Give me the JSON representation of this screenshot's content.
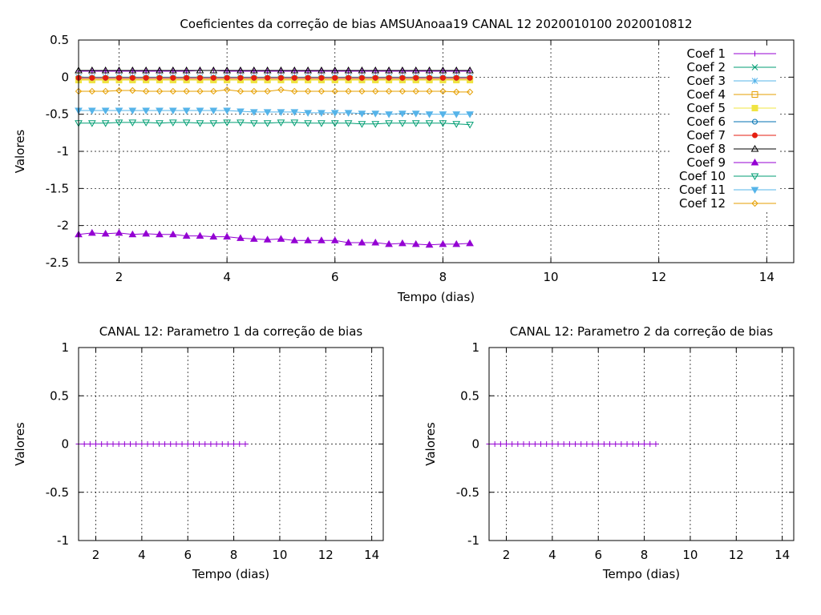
{
  "chart_data": [
    {
      "type": "line",
      "title": "Coeficientes da correção de bias AMSUAnoaa19 CANAL 12 2020010100 2020010812",
      "xlabel": "Tempo (dias)",
      "ylabel": "Valores",
      "xlim": [
        1.25,
        14.5
      ],
      "ylim": [
        -2.5,
        0.5
      ],
      "xticks": [
        "2",
        "4",
        "6",
        "8",
        "10",
        "12",
        "14"
      ],
      "yticks": [
        "0.5",
        "0",
        "-0.5",
        "-1",
        "-1.5",
        "-2",
        "-2.5"
      ],
      "grid": true,
      "legend_position": "top-right",
      "x": [
        1.25,
        1.5,
        1.75,
        2.0,
        2.25,
        2.5,
        2.75,
        3.0,
        3.25,
        3.5,
        3.75,
        4.0,
        4.25,
        4.5,
        4.75,
        5.0,
        5.25,
        5.5,
        5.75,
        6.0,
        6.25,
        6.5,
        6.75,
        7.0,
        7.25,
        7.5,
        7.75,
        8.0,
        8.25,
        8.5
      ],
      "series": [
        {
          "name": "Coef 1",
          "color": "#9400d3",
          "marker": "plus",
          "values": [
            0.08,
            0.08,
            0.08,
            0.08,
            0.08,
            0.08,
            0.08,
            0.08,
            0.08,
            0.09,
            0.09,
            0.08,
            0.08,
            0.08,
            0.08,
            0.08,
            0.08,
            0.08,
            0.08,
            0.08,
            0.08,
            0.08,
            0.08,
            0.08,
            0.08,
            0.08,
            0.08,
            0.08,
            0.08,
            0.08
          ]
        },
        {
          "name": "Coef 2",
          "color": "#009e73",
          "marker": "x",
          "values": [
            0.0,
            0.0,
            0.0,
            0.0,
            0.0,
            0.0,
            0.0,
            0.0,
            0.0,
            0.0,
            0.0,
            0.0,
            0.0,
            0.0,
            0.0,
            0.0,
            0.0,
            0.0,
            0.0,
            0.0,
            0.0,
            0.0,
            0.0,
            0.0,
            0.0,
            0.0,
            0.0,
            0.0,
            0.0,
            0.0
          ]
        },
        {
          "name": "Coef 3",
          "color": "#56b4e9",
          "marker": "star",
          "values": [
            0.0,
            0.0,
            0.0,
            0.0,
            0.0,
            0.0,
            0.0,
            0.0,
            0.0,
            0.0,
            0.0,
            0.0,
            0.0,
            0.0,
            0.0,
            0.0,
            0.0,
            0.0,
            0.0,
            0.0,
            0.0,
            0.0,
            0.0,
            0.0,
            0.0,
            0.0,
            0.0,
            0.0,
            0.0,
            0.0
          ]
        },
        {
          "name": "Coef 4",
          "color": "#e69f00",
          "marker": "square-open",
          "values": [
            -0.03,
            -0.03,
            -0.03,
            -0.03,
            -0.03,
            -0.03,
            -0.03,
            -0.03,
            -0.03,
            -0.03,
            -0.03,
            -0.03,
            -0.03,
            -0.03,
            -0.03,
            -0.03,
            -0.03,
            -0.03,
            -0.03,
            -0.03,
            -0.03,
            -0.03,
            -0.03,
            -0.03,
            -0.03,
            -0.03,
            -0.03,
            -0.03,
            -0.03,
            -0.03
          ]
        },
        {
          "name": "Coef 5",
          "color": "#f0e442",
          "marker": "square-filled",
          "values": [
            -0.04,
            -0.04,
            -0.04,
            -0.04,
            -0.04,
            -0.04,
            -0.04,
            -0.04,
            -0.04,
            -0.04,
            -0.04,
            -0.04,
            -0.04,
            -0.04,
            -0.04,
            -0.04,
            -0.04,
            -0.04,
            -0.04,
            -0.04,
            -0.04,
            -0.04,
            -0.04,
            -0.04,
            -0.04,
            -0.04,
            -0.04,
            -0.04,
            -0.04,
            -0.04
          ]
        },
        {
          "name": "Coef 6",
          "color": "#0072b2",
          "marker": "circle-open",
          "values": [
            -0.01,
            -0.01,
            -0.01,
            -0.01,
            -0.01,
            -0.01,
            -0.01,
            -0.01,
            -0.01,
            -0.01,
            -0.01,
            -0.01,
            -0.01,
            -0.01,
            -0.01,
            -0.01,
            -0.01,
            -0.01,
            -0.01,
            -0.01,
            -0.01,
            -0.01,
            -0.01,
            -0.01,
            -0.01,
            -0.01,
            -0.01,
            -0.01,
            -0.01,
            -0.01
          ]
        },
        {
          "name": "Coef 7",
          "color": "#e51e10",
          "marker": "circle-filled",
          "values": [
            -0.01,
            -0.01,
            -0.01,
            -0.01,
            -0.01,
            -0.01,
            -0.01,
            -0.01,
            -0.01,
            -0.01,
            -0.01,
            -0.01,
            -0.01,
            -0.01,
            -0.01,
            -0.01,
            -0.01,
            -0.01,
            -0.01,
            -0.01,
            -0.01,
            -0.01,
            -0.01,
            -0.01,
            -0.01,
            -0.01,
            -0.01,
            -0.01,
            -0.01,
            -0.01
          ]
        },
        {
          "name": "Coef 8",
          "color": "#000000",
          "marker": "triangle-open",
          "values": [
            0.09,
            0.09,
            0.09,
            0.09,
            0.09,
            0.09,
            0.09,
            0.09,
            0.09,
            0.09,
            0.09,
            0.09,
            0.09,
            0.09,
            0.09,
            0.09,
            0.09,
            0.09,
            0.09,
            0.09,
            0.09,
            0.09,
            0.09,
            0.09,
            0.09,
            0.09,
            0.09,
            0.09,
            0.09,
            0.09
          ]
        },
        {
          "name": "Coef 9",
          "color": "#9400d3",
          "marker": "triangle-filled",
          "values": [
            -2.12,
            -2.1,
            -2.11,
            -2.1,
            -2.12,
            -2.11,
            -2.12,
            -2.12,
            -2.14,
            -2.14,
            -2.15,
            -2.15,
            -2.17,
            -2.18,
            -2.19,
            -2.18,
            -2.2,
            -2.2,
            -2.2,
            -2.2,
            -2.23,
            -2.23,
            -2.23,
            -2.25,
            -2.24,
            -2.25,
            -2.26,
            -2.25,
            -2.25,
            -2.24
          ]
        },
        {
          "name": "Coef 10",
          "color": "#009e73",
          "marker": "triangle-down-open",
          "values": [
            -0.62,
            -0.62,
            -0.62,
            -0.61,
            -0.61,
            -0.61,
            -0.62,
            -0.61,
            -0.61,
            -0.62,
            -0.62,
            -0.61,
            -0.61,
            -0.62,
            -0.62,
            -0.61,
            -0.61,
            -0.62,
            -0.62,
            -0.62,
            -0.62,
            -0.63,
            -0.63,
            -0.62,
            -0.62,
            -0.62,
            -0.62,
            -0.62,
            -0.63,
            -0.64
          ]
        },
        {
          "name": "Coef 11",
          "color": "#56b4e9",
          "marker": "triangle-down-filled",
          "values": [
            -0.45,
            -0.45,
            -0.45,
            -0.45,
            -0.45,
            -0.45,
            -0.45,
            -0.45,
            -0.45,
            -0.45,
            -0.45,
            -0.45,
            -0.46,
            -0.47,
            -0.47,
            -0.47,
            -0.47,
            -0.48,
            -0.48,
            -0.48,
            -0.48,
            -0.49,
            -0.49,
            -0.5,
            -0.49,
            -0.49,
            -0.5,
            -0.5,
            -0.5,
            -0.5
          ]
        },
        {
          "name": "Coef 12",
          "color": "#e69f00",
          "marker": "diamond-open",
          "values": [
            -0.19,
            -0.19,
            -0.19,
            -0.18,
            -0.18,
            -0.19,
            -0.19,
            -0.19,
            -0.19,
            -0.19,
            -0.19,
            -0.17,
            -0.19,
            -0.19,
            -0.19,
            -0.17,
            -0.19,
            -0.19,
            -0.19,
            -0.19,
            -0.19,
            -0.19,
            -0.19,
            -0.19,
            -0.19,
            -0.19,
            -0.19,
            -0.19,
            -0.2,
            -0.2
          ]
        }
      ]
    },
    {
      "type": "line",
      "title": "CANAL 12: Parametro 1 da correção de bias",
      "xlabel": "Tempo (dias)",
      "ylabel": "Valores",
      "xlim": [
        1.25,
        14.5
      ],
      "ylim": [
        -1,
        1
      ],
      "xticks": [
        "2",
        "4",
        "6",
        "8",
        "10",
        "12",
        "14"
      ],
      "yticks": [
        "1",
        "0.5",
        "0",
        "-0.5",
        "-1"
      ],
      "grid": true,
      "x": [
        1.25,
        1.5,
        1.75,
        2.0,
        2.25,
        2.5,
        2.75,
        3.0,
        3.25,
        3.5,
        3.75,
        4.0,
        4.25,
        4.5,
        4.75,
        5.0,
        5.25,
        5.5,
        5.75,
        6.0,
        6.25,
        6.5,
        6.75,
        7.0,
        7.25,
        7.5,
        7.75,
        8.0,
        8.25,
        8.5
      ],
      "series": [
        {
          "color": "#9400d3",
          "marker": "plus",
          "values": [
            0,
            0,
            0,
            0,
            0,
            0,
            0,
            0,
            0,
            0,
            0,
            0,
            0,
            0,
            0,
            0,
            0,
            0,
            0,
            0,
            0,
            0,
            0,
            0,
            0,
            0,
            0,
            0,
            0,
            0
          ]
        }
      ]
    },
    {
      "type": "line",
      "title": "CANAL 12: Parametro 2 da correção de bias",
      "xlabel": "Tempo (dias)",
      "ylabel": "Valores",
      "xlim": [
        1.25,
        14.5
      ],
      "ylim": [
        -1,
        1
      ],
      "xticks": [
        "2",
        "4",
        "6",
        "8",
        "10",
        "12",
        "14"
      ],
      "yticks": [
        "1",
        "0.5",
        "0",
        "-0.5",
        "-1"
      ],
      "grid": true,
      "x": [
        1.25,
        1.5,
        1.75,
        2.0,
        2.25,
        2.5,
        2.75,
        3.0,
        3.25,
        3.5,
        3.75,
        4.0,
        4.25,
        4.5,
        4.75,
        5.0,
        5.25,
        5.5,
        5.75,
        6.0,
        6.25,
        6.5,
        6.75,
        7.0,
        7.25,
        7.5,
        7.75,
        8.0,
        8.25,
        8.5
      ],
      "series": [
        {
          "color": "#9400d3",
          "marker": "plus",
          "values": [
            0,
            0,
            0,
            0,
            0,
            0,
            0,
            0,
            0,
            0,
            0,
            0,
            0,
            0,
            0,
            0,
            0,
            0,
            0,
            0,
            0,
            0,
            0,
            0,
            0,
            0,
            0,
            0,
            0,
            0
          ]
        }
      ]
    }
  ]
}
